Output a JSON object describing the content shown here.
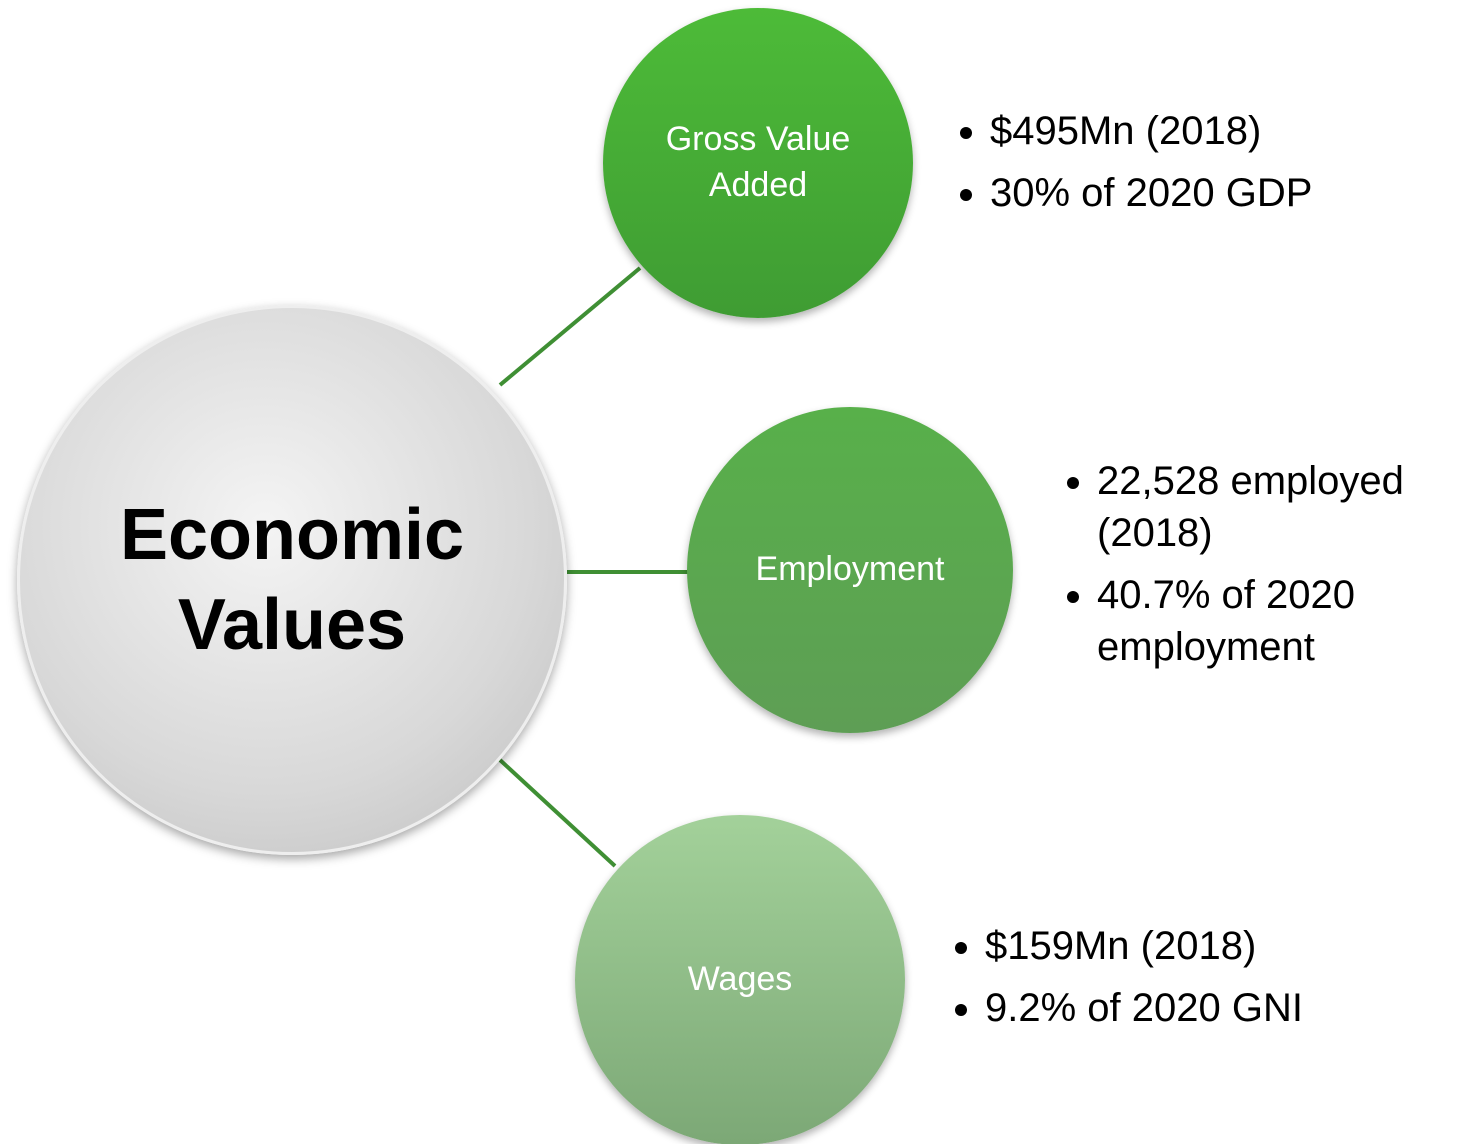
{
  "center": {
    "label": "Economic Values"
  },
  "nodes": [
    {
      "label": "Gross Value Added",
      "bullets": [
        "$495Mn (2018)",
        "30% of 2020 GDP"
      ]
    },
    {
      "label": "Employment",
      "bullets": [
        "22,528 employed (2018)",
        "40.7% of 2020 employment"
      ]
    },
    {
      "label": "Wages",
      "bullets": [
        "$159Mn (2018)",
        "9.2% of 2020 GNI"
      ]
    }
  ]
}
